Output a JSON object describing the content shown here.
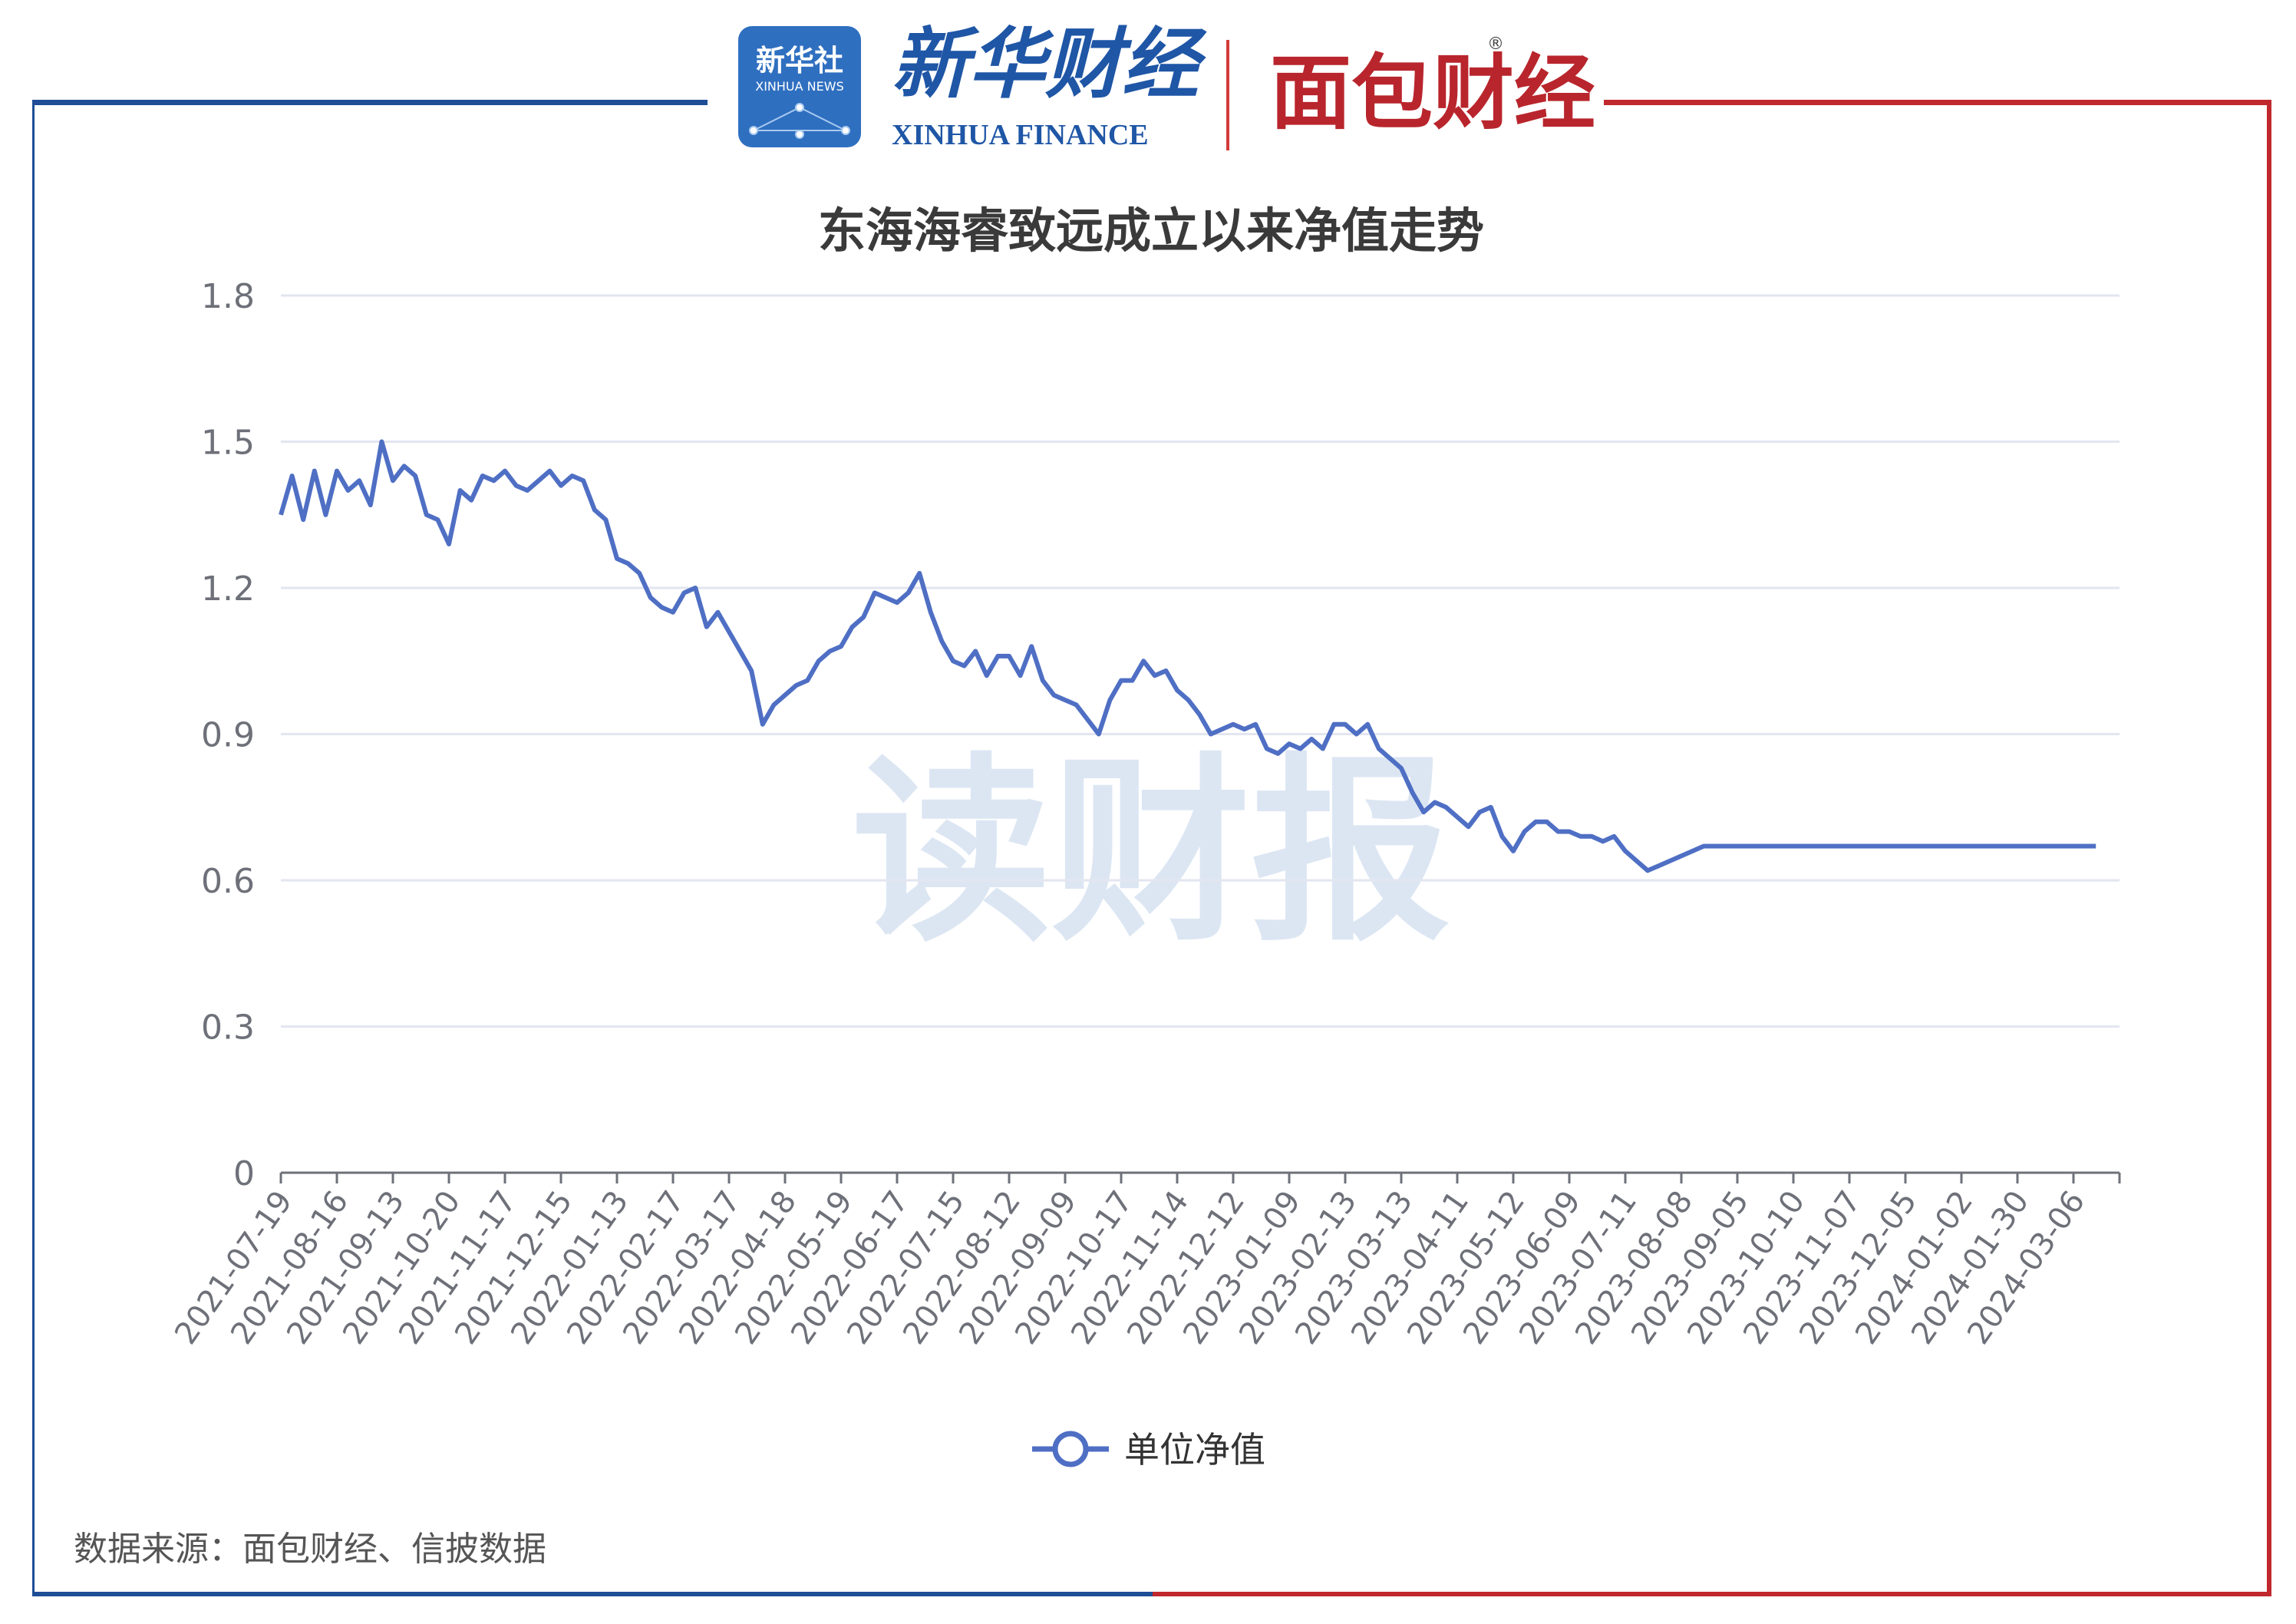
{
  "header": {
    "xinhua_news_cn": "新华社",
    "xinhua_news_en": "XINHUA NEWS",
    "xinhua_finance_cn": "新华财经",
    "xinhua_finance_en": "XINHUA FINANCE",
    "mianbao_logo": "面包财经",
    "registered_mark": "®"
  },
  "watermark": "读财报",
  "source_note": "数据来源：面包财经、信披数据",
  "colors": {
    "line": "#4f6fc4",
    "frame_blue": "#1f4e96",
    "frame_red": "#c0282e",
    "watermark": "#dce6f3"
  },
  "chart_data": {
    "type": "line",
    "title": "东海海睿致远成立以来净值走势",
    "xlabel": "",
    "ylabel": "",
    "ylim": [
      0,
      1.8
    ],
    "yticks": [
      "0",
      "0.3",
      "0.6",
      "0.9",
      "1.2",
      "1.5",
      "1.8"
    ],
    "grid": true,
    "legend_position": "bottom",
    "x_tick_labels": [
      "2021-07-19",
      "2021-08-16",
      "2021-09-13",
      "2021-10-20",
      "2021-11-17",
      "2021-12-15",
      "2022-01-13",
      "2022-02-17",
      "2022-03-17",
      "2022-04-18",
      "2022-05-19",
      "2022-06-17",
      "2022-07-15",
      "2022-08-12",
      "2022-09-09",
      "2022-10-17",
      "2022-11-14",
      "2022-12-12",
      "2023-01-09",
      "2023-02-13",
      "2023-03-13",
      "2023-04-11",
      "2023-05-12",
      "2023-06-09",
      "2023-07-11",
      "2023-08-08",
      "2023-09-05",
      "2023-10-10",
      "2023-11-07",
      "2023-12-05",
      "2024-01-02",
      "2024-01-30",
      "2024-03-06"
    ],
    "series": [
      {
        "name": "单位净值",
        "x_index": [
          0,
          0.2,
          0.4,
          0.6,
          0.8,
          1.0,
          1.2,
          1.4,
          1.6,
          1.8,
          2.0,
          2.2,
          2.4,
          2.6,
          2.8,
          3.0,
          3.2,
          3.4,
          3.6,
          3.8,
          4.0,
          4.2,
          4.4,
          4.6,
          4.8,
          5.0,
          5.2,
          5.4,
          5.6,
          5.8,
          6.0,
          6.2,
          6.4,
          6.6,
          6.8,
          7.0,
          7.2,
          7.4,
          7.6,
          7.8,
          8.0,
          8.2,
          8.4,
          8.6,
          8.8,
          9.0,
          9.2,
          9.4,
          9.6,
          9.8,
          10.0,
          10.2,
          10.4,
          10.6,
          10.8,
          11.0,
          11.2,
          11.4,
          11.6,
          11.8,
          12.0,
          12.2,
          12.4,
          12.6,
          12.8,
          13.0,
          13.2,
          13.4,
          13.6,
          13.8,
          14.0,
          14.2,
          14.4,
          14.6,
          14.8,
          15.0,
          15.2,
          15.4,
          15.6,
          15.8,
          16.0,
          16.2,
          16.4,
          16.6,
          16.8,
          17.0,
          17.2,
          17.4,
          17.6,
          17.8,
          18.0,
          18.2,
          18.4,
          18.6,
          18.8,
          19.0,
          19.2,
          19.4,
          19.6,
          19.8,
          20.0,
          20.2,
          20.4,
          20.6,
          20.8,
          21.0,
          21.2,
          21.4,
          21.6,
          21.8,
          22.0,
          22.2,
          22.4,
          22.6,
          22.8,
          23.0,
          23.2,
          23.4,
          23.6,
          23.8,
          24.0,
          24.2,
          24.4,
          24.6,
          24.8,
          25.0,
          25.2,
          25.4,
          25.6,
          25.8,
          26.0,
          26.2,
          26.4,
          26.6,
          26.8,
          27.0,
          27.2,
          27.4,
          27.6,
          27.8,
          28.0,
          28.2,
          28.4,
          28.6,
          28.8,
          29.0,
          29.2,
          29.4,
          29.6,
          29.8,
          30.0,
          30.2,
          30.4,
          30.6,
          30.8,
          31.0,
          31.2,
          31.4,
          31.6,
          31.8,
          32.0,
          32.2,
          32.4
        ],
        "values": [
          1.35,
          1.43,
          1.34,
          1.44,
          1.35,
          1.44,
          1.4,
          1.42,
          1.37,
          1.5,
          1.42,
          1.45,
          1.43,
          1.35,
          1.34,
          1.29,
          1.4,
          1.38,
          1.43,
          1.42,
          1.44,
          1.41,
          1.4,
          1.42,
          1.44,
          1.41,
          1.43,
          1.42,
          1.36,
          1.34,
          1.26,
          1.25,
          1.23,
          1.18,
          1.16,
          1.15,
          1.19,
          1.2,
          1.12,
          1.15,
          1.11,
          1.07,
          1.03,
          0.92,
          0.96,
          0.98,
          1.0,
          1.01,
          1.05,
          1.07,
          1.08,
          1.12,
          1.14,
          1.19,
          1.18,
          1.17,
          1.19,
          1.23,
          1.15,
          1.09,
          1.05,
          1.04,
          1.07,
          1.02,
          1.06,
          1.06,
          1.02,
          1.08,
          1.01,
          0.98,
          0.97,
          0.96,
          0.93,
          0.9,
          0.97,
          1.01,
          1.01,
          1.05,
          1.02,
          1.03,
          0.99,
          0.97,
          0.94,
          0.9,
          0.91,
          0.92,
          0.91,
          0.92,
          0.87,
          0.86,
          0.88,
          0.87,
          0.89,
          0.87,
          0.92,
          0.92,
          0.9,
          0.92,
          0.87,
          0.85,
          0.83,
          0.78,
          0.74,
          0.76,
          0.75,
          0.73,
          0.71,
          0.74,
          0.75,
          0.69,
          0.66,
          0.7,
          0.72,
          0.72,
          0.7,
          0.7,
          0.69,
          0.69,
          0.68,
          0.69,
          0.66,
          0.64,
          0.62,
          0.63,
          0.64,
          0.65,
          0.66,
          0.67,
          0.67,
          0.67,
          0.67,
          0.67,
          0.67,
          0.67,
          0.67,
          0.67,
          0.67,
          0.67,
          0.67,
          0.67,
          0.67,
          0.67,
          0.67,
          0.67,
          0.67,
          0.67,
          0.67,
          0.67,
          0.67,
          0.67,
          0.67,
          0.67,
          0.67,
          0.67,
          0.67,
          0.67,
          0.67,
          0.67,
          0.67,
          0.67,
          0.67,
          0.67,
          0.67
        ]
      }
    ]
  }
}
